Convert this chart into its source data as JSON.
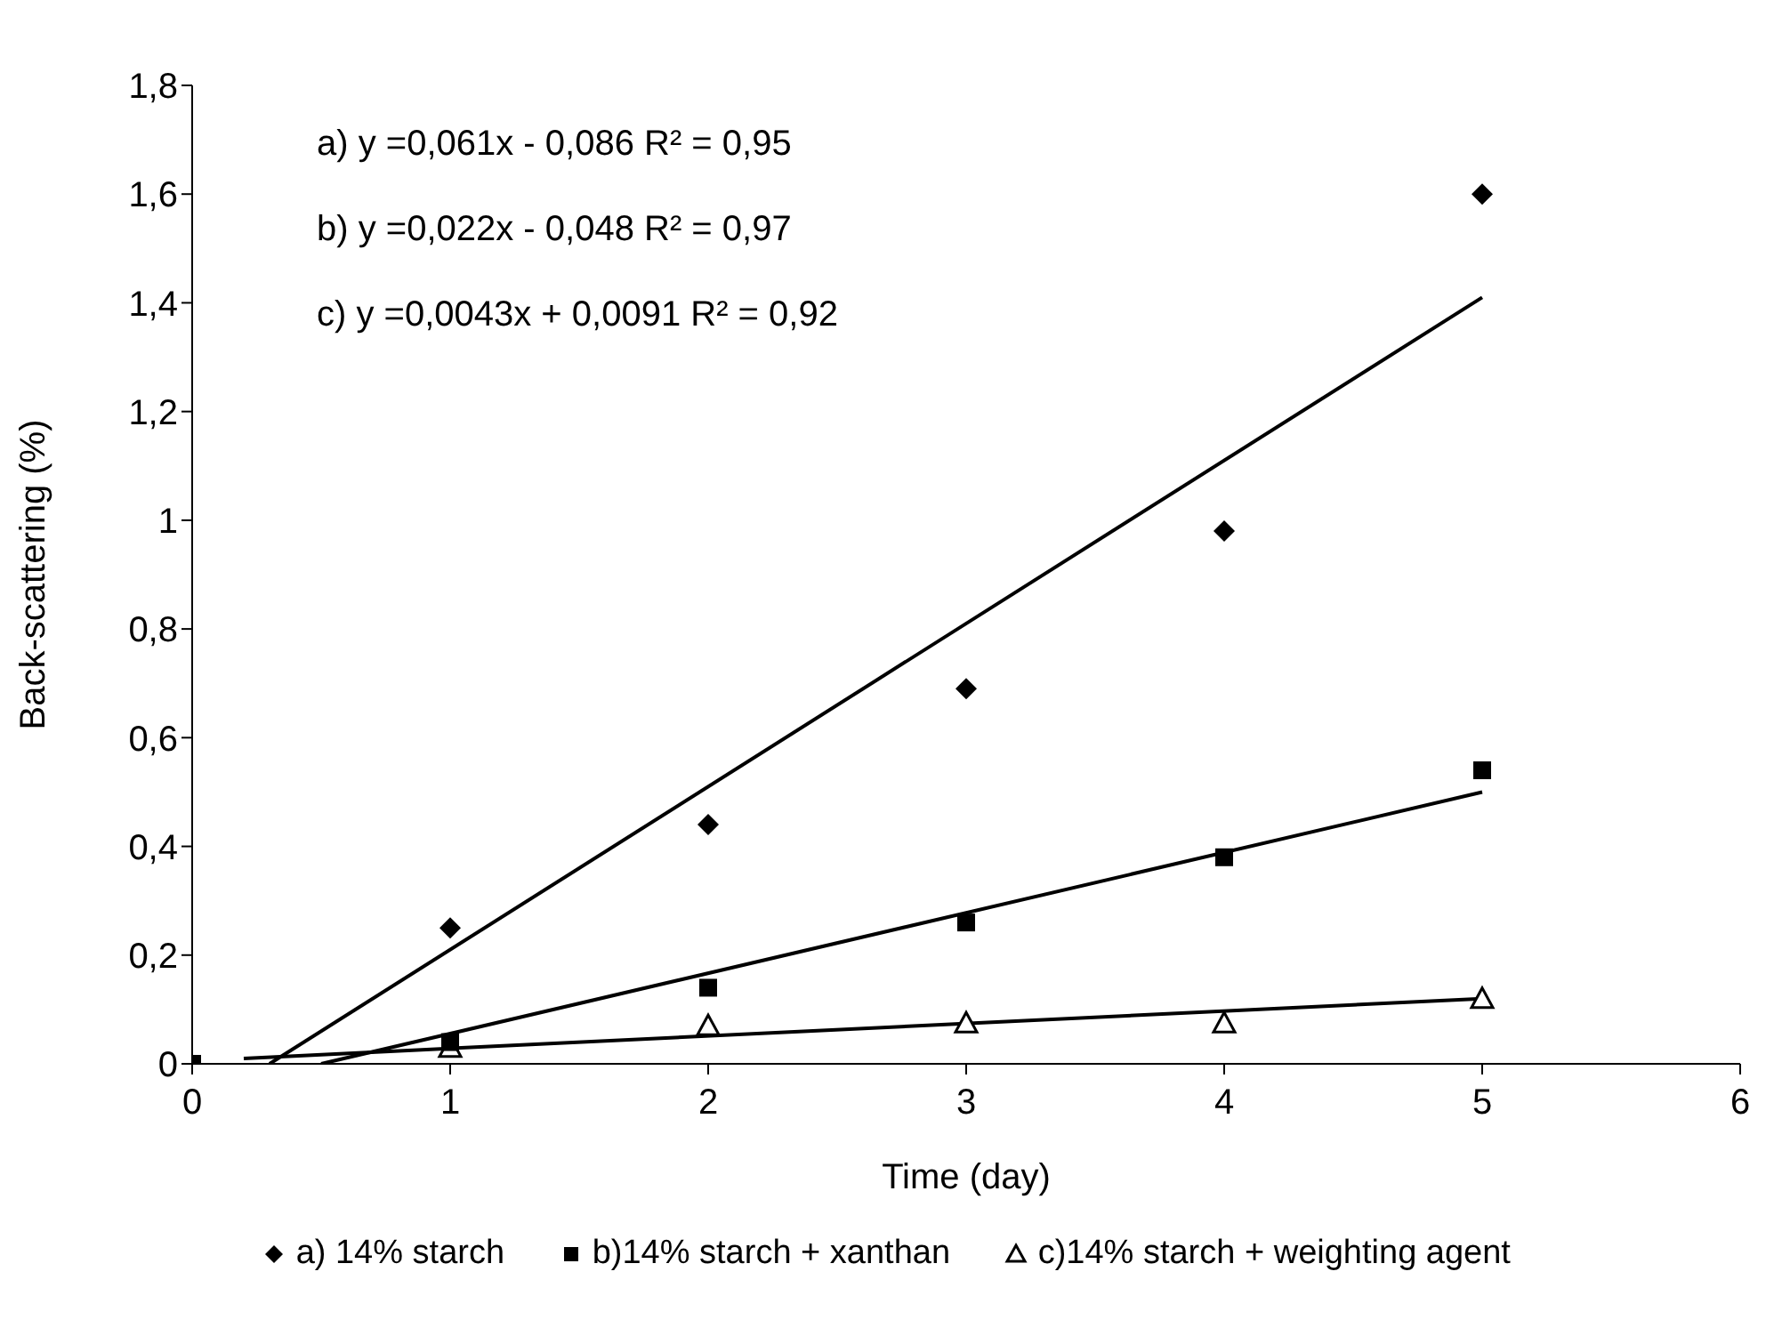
{
  "chart_data": {
    "type": "scatter",
    "xlabel": "Time (day)",
    "ylabel": "Back-scattering (%)",
    "x": [
      0,
      1,
      2,
      3,
      4,
      5
    ],
    "xlim": [
      0,
      6
    ],
    "xticks": [
      0,
      1,
      2,
      3,
      4,
      5,
      6
    ],
    "ylim": [
      0,
      1.8
    ],
    "yticks": [
      {
        "value": 0,
        "label": "0"
      },
      {
        "value": 0.2,
        "label": "0,2"
      },
      {
        "value": 0.4,
        "label": "0,4"
      },
      {
        "value": 0.6,
        "label": "0,6"
      },
      {
        "value": 0.8,
        "label": "0,8"
      },
      {
        "value": 1,
        "label": "1"
      },
      {
        "value": 1.2,
        "label": "1,2"
      },
      {
        "value": 1.4,
        "label": "1,4"
      },
      {
        "value": 1.6,
        "label": "1,6"
      },
      {
        "value": 1.8,
        "label": "1,8"
      }
    ],
    "grid": false,
    "legend": "bottom",
    "annotations": [
      "a) y =0,061x - 0,086 R² = 0,95",
      "b) y =0,022x - 0,048 R² = 0,97",
      "c) y =0,0043x + 0,0091 R² = 0,92"
    ],
    "series": [
      {
        "name": "a) 14% starch",
        "marker": "diamond",
        "color": "#000000",
        "values": [
          null,
          0.25,
          0.44,
          0.69,
          0.98,
          1.6
        ]
      },
      {
        "name": "b)14% starch + xanthan",
        "marker": "square",
        "color": "#000000",
        "values": [
          0,
          0.04,
          0.14,
          0.26,
          0.38,
          0.54
        ]
      },
      {
        "name": "c)14% starch + weighting agent",
        "marker": "triangle",
        "color": "#000000",
        "values": [
          null,
          0.03,
          0.07,
          0.075,
          0.075,
          0.12
        ]
      },
      {
        "type": "line",
        "marker": "none",
        "color": "#000000",
        "x": [
          0.3,
          5
        ],
        "values": [
          0,
          1.41
        ]
      },
      {
        "type": "line",
        "marker": "none",
        "color": "#000000",
        "x": [
          0.5,
          5
        ],
        "values": [
          0,
          0.5
        ]
      },
      {
        "type": "line",
        "marker": "none",
        "color": "#000000",
        "x": [
          0.2,
          5
        ],
        "values": [
          0.01,
          0.12
        ]
      }
    ]
  }
}
